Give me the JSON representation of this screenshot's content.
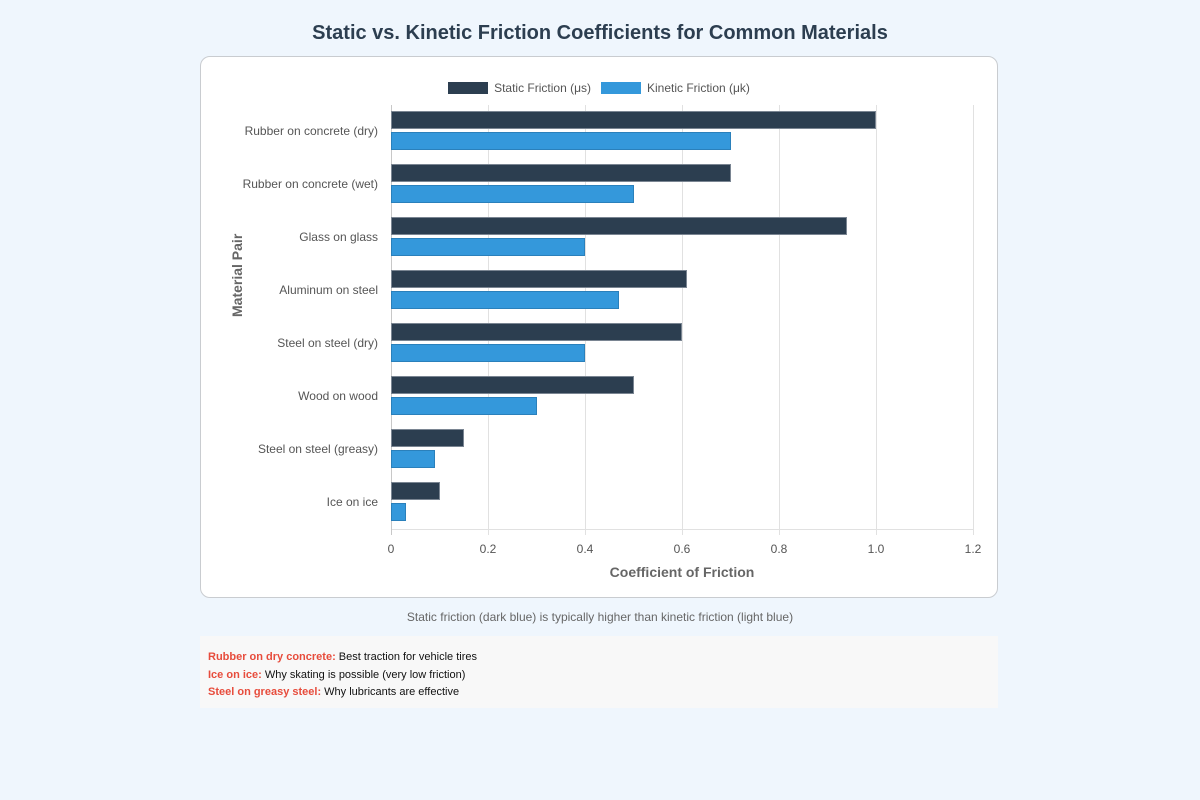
{
  "page": {
    "title": "Static vs. Kinetic Friction Coefficients for Common Materials",
    "note": "Static friction (dark blue) is typically higher than kinetic friction (light blue)"
  },
  "legend": [
    {
      "label": "Static Friction (μs)",
      "color": "#2c3e50"
    },
    {
      "label": "Kinetic Friction (μk)",
      "color": "#3498db"
    }
  ],
  "axes": {
    "xlabel": "Coefficient of Friction",
    "ylabel": "Material Pair",
    "xticks": [
      "0",
      "0.2",
      "0.4",
      "0.6",
      "0.8",
      "1.0",
      "1.2"
    ]
  },
  "facts": [
    {
      "key": "Rubber on dry concrete:",
      "text": " Best traction for vehicle tires"
    },
    {
      "key": "Ice on ice:",
      "text": " Why skating is possible (very low friction)"
    },
    {
      "key": "Steel on greasy steel:",
      "text": " Why lubricants are effective"
    }
  ],
  "chart_data": {
    "type": "bar",
    "orientation": "horizontal",
    "title": "Static vs. Kinetic Friction Coefficients for Common Materials",
    "xlabel": "Coefficient of Friction",
    "ylabel": "Material Pair",
    "xlim": [
      0,
      1.2
    ],
    "grid": true,
    "legend_position": "top",
    "categories": [
      "Rubber on concrete (dry)",
      "Rubber on concrete (wet)",
      "Glass on glass",
      "Aluminum on steel",
      "Steel on steel (dry)",
      "Wood on wood",
      "Steel on steel (greasy)",
      "Ice on ice"
    ],
    "series": [
      {
        "name": "Static Friction (μs)",
        "color": "#2c3e50",
        "values": [
          1.0,
          0.7,
          0.94,
          0.61,
          0.6,
          0.5,
          0.15,
          0.1
        ]
      },
      {
        "name": "Kinetic Friction (μk)",
        "color": "#3498db",
        "values": [
          0.7,
          0.5,
          0.4,
          0.47,
          0.4,
          0.3,
          0.09,
          0.03
        ]
      }
    ]
  }
}
